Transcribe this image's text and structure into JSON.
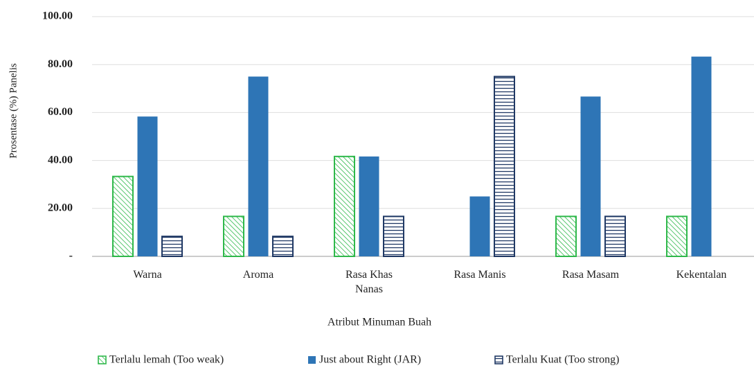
{
  "chart_data": {
    "type": "bar",
    "y_label": "Prosentase (%) Panelis",
    "x_label": "Atribut Minuman Buah",
    "categories": [
      "Warna",
      "Aroma",
      "Rasa Khas Nanas",
      "Rasa Manis",
      "Rasa Masam",
      "Kekentalan"
    ],
    "series": [
      {
        "name": "Terlalu lemah (Too weak)",
        "color": "#2eb84a",
        "values": [
          33.33,
          16.67,
          41.67,
          0,
          16.67,
          16.67
        ]
      },
      {
        "name": "Just about Right (JAR)",
        "color": "#2e75b6",
        "values": [
          58.33,
          75,
          41.67,
          25,
          66.67,
          83.33
        ]
      },
      {
        "name": "Terlalu Kuat (Too strong)",
        "color": "#1f3864",
        "values": [
          8.33,
          8.33,
          16.67,
          75,
          16.67,
          0
        ]
      }
    ],
    "ylim": [
      0,
      100
    ],
    "yticks": [
      {
        "value": 0,
        "label": "-"
      },
      {
        "value": 20,
        "label": "20.00"
      },
      {
        "value": 40,
        "label": "40.00"
      },
      {
        "value": 60,
        "label": "60.00"
      },
      {
        "value": 80,
        "label": "80.00"
      },
      {
        "value": 100,
        "label": "100.00"
      }
    ],
    "grid": true,
    "legend": "bottom"
  }
}
